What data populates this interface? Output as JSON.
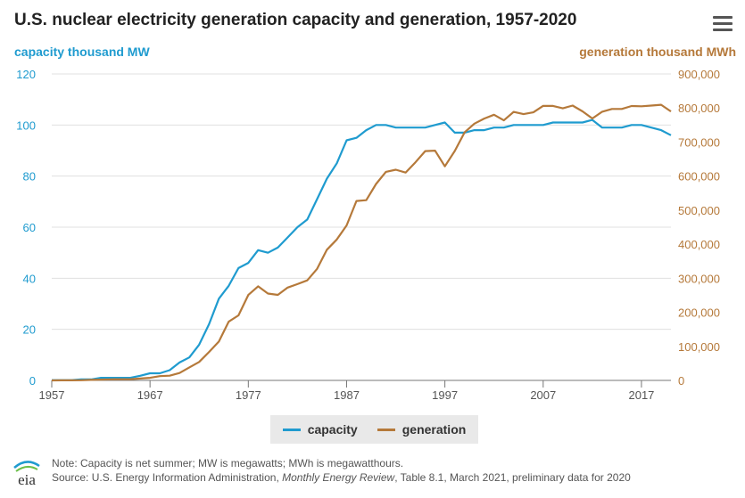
{
  "title": "U.S. nuclear electricity generation capacity and generation, 1957-2020",
  "menu_icon": "hamburger-menu-icon",
  "colors": {
    "capacity": "#1f9bcf",
    "generation": "#b5793a",
    "grid": "#e0e0e0",
    "axis_text": "#555555"
  },
  "legend": {
    "items": [
      "capacity",
      "generation"
    ]
  },
  "logo_text": "eia",
  "note": {
    "line1": "Note: Capacity is net summer; MW is megawatts; MWh is megawatthours.",
    "line2_prefix": "Source: U.S. Energy Information Administration, ",
    "line2_italic": "Monthly Energy Review",
    "line2_suffix": ", Table 8.1, March 2021, preliminary data for 2020"
  },
  "chart_data": {
    "type": "line",
    "title": "U.S. nuclear electricity generation capacity and generation, 1957-2020",
    "x": [
      1957,
      1958,
      1959,
      1960,
      1961,
      1962,
      1963,
      1964,
      1965,
      1966,
      1967,
      1968,
      1969,
      1970,
      1971,
      1972,
      1973,
      1974,
      1975,
      1976,
      1977,
      1978,
      1979,
      1980,
      1981,
      1982,
      1983,
      1984,
      1985,
      1986,
      1987,
      1988,
      1989,
      1990,
      1991,
      1992,
      1993,
      1994,
      1995,
      1996,
      1997,
      1998,
      1999,
      2000,
      2001,
      2002,
      2003,
      2004,
      2005,
      2006,
      2007,
      2008,
      2009,
      2010,
      2011,
      2012,
      2013,
      2014,
      2015,
      2016,
      2017,
      2018,
      2019,
      2020
    ],
    "xticks": [
      "1957",
      "1967",
      "1977",
      "1987",
      "1997",
      "2007",
      "2017"
    ],
    "xlim": [
      1957,
      2020
    ],
    "y_left": {
      "label": "capacity thousand MW",
      "lim": [
        0,
        120
      ],
      "ticks": [
        "0",
        "20",
        "40",
        "60",
        "80",
        "100",
        "120"
      ]
    },
    "y_right": {
      "label": "generation thousand MWh",
      "lim": [
        0,
        900000
      ],
      "ticks": [
        "0",
        "100,000",
        "200,000",
        "300,000",
        "400,000",
        "500,000",
        "600,000",
        "700,000",
        "800,000",
        "900,000"
      ]
    },
    "grid": true,
    "legend_position": "bottom-center",
    "series": [
      {
        "name": "capacity",
        "axis": "left",
        "values": [
          0.1,
          0.1,
          0.1,
          0.4,
          0.4,
          1,
          1,
          1,
          1,
          1.8,
          2.8,
          2.8,
          4,
          7,
          9,
          14,
          22,
          32,
          37,
          44,
          46,
          51,
          50,
          52,
          56,
          60,
          63,
          71,
          79,
          85,
          94,
          95,
          98,
          100,
          100,
          99,
          99,
          99,
          99,
          100,
          101,
          97,
          97,
          98,
          98,
          99,
          99,
          100,
          100,
          100,
          100,
          101,
          101,
          101,
          101,
          102,
          99,
          99,
          99,
          100,
          100,
          99,
          98,
          96
        ]
      },
      {
        "name": "generation",
        "axis": "right",
        "values": [
          0,
          200,
          200,
          500,
          1700,
          2300,
          3200,
          3300,
          3700,
          5500,
          7700,
          12500,
          13900,
          21800,
          38100,
          54100,
          83500,
          114000,
          172500,
          191100,
          250900,
          276400,
          255200,
          251100,
          272700,
          282800,
          293700,
          327600,
          383700,
          414000,
          455300,
          527000,
          529400,
          576900,
          612600,
          618800,
          610300,
          640400,
          673400,
          674700,
          628600,
          673700,
          728300,
          753900,
          768800,
          780100,
          763700,
          788500,
          782000,
          787200,
          806400,
          806200,
          798900,
          807000,
          790200,
          769300,
          789000,
          797200,
          797200,
          805700,
          804900,
          807100,
          809400,
          789900
        ]
      }
    ]
  }
}
